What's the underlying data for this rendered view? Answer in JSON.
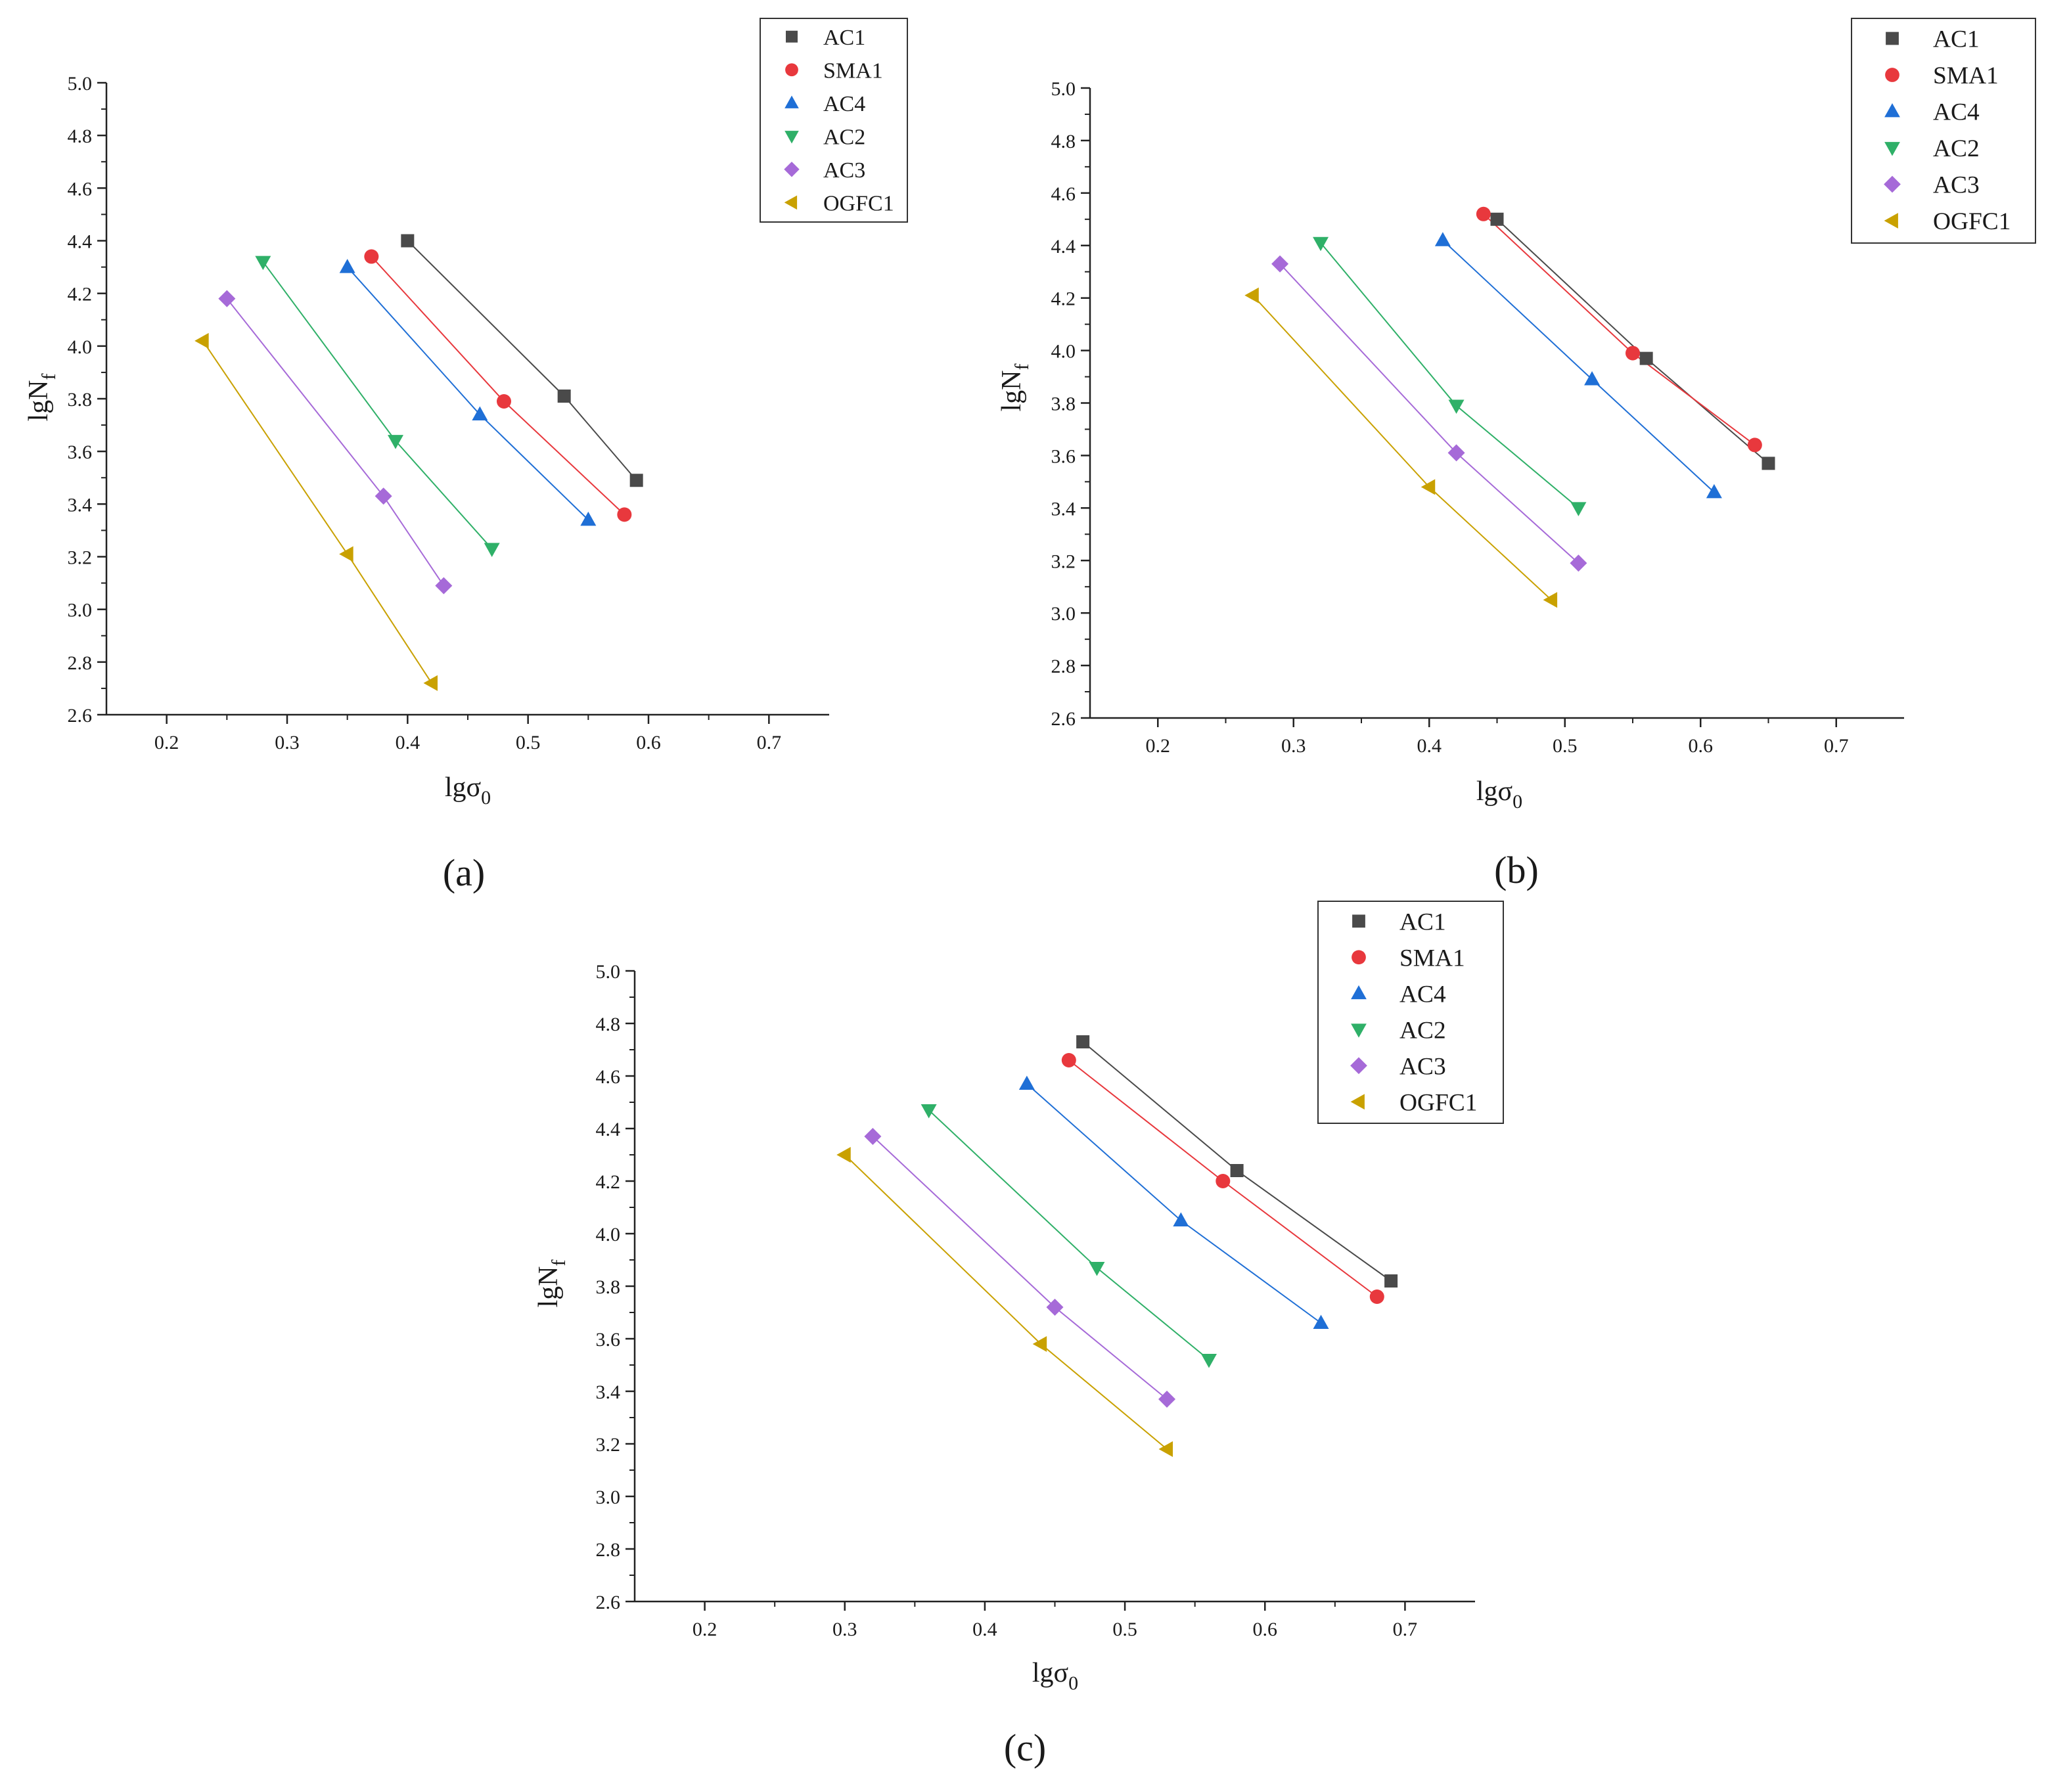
{
  "chart_data": [
    {
      "type": "scatter",
      "panel_label": "(a)",
      "xlabel": "lgσ",
      "xlabel_sub": "0",
      "ylabel": "lgN",
      "ylabel_sub": "f",
      "xlim": [
        0.15,
        0.75
      ],
      "ylim": [
        2.6,
        5.0
      ],
      "xticks": [
        "0.2",
        "0.3",
        "0.4",
        "0.5",
        "0.6",
        "0.7"
      ],
      "yticks": [
        "2.6",
        "2.8",
        "3.0",
        "3.2",
        "3.4",
        "3.6",
        "3.8",
        "4.0",
        "4.2",
        "4.4",
        "4.6",
        "4.8",
        "5.0"
      ],
      "legend_position": "top-right",
      "series": [
        {
          "name": "AC1",
          "marker": "square",
          "color": "#4a4a4a",
          "x": [
            0.4,
            0.53,
            0.59
          ],
          "y": [
            4.4,
            3.81,
            3.49
          ]
        },
        {
          "name": "SMA1",
          "marker": "circle",
          "color": "#e8383d",
          "x": [
            0.37,
            0.48,
            0.58
          ],
          "y": [
            4.34,
            3.79,
            3.36
          ]
        },
        {
          "name": "AC4",
          "marker": "triangle-up",
          "color": "#1f6fd6",
          "x": [
            0.35,
            0.46,
            0.55
          ],
          "y": [
            4.3,
            3.74,
            3.34
          ]
        },
        {
          "name": "AC2",
          "marker": "triangle-down",
          "color": "#2fb068",
          "x": [
            0.28,
            0.39,
            0.47
          ],
          "y": [
            4.32,
            3.64,
            3.23
          ]
        },
        {
          "name": "AC3",
          "marker": "diamond",
          "color": "#a66ad8",
          "x": [
            0.25,
            0.38,
            0.43
          ],
          "y": [
            4.18,
            3.43,
            3.09
          ]
        },
        {
          "name": "OGFC1",
          "marker": "triangle-left",
          "color": "#c9a100",
          "x": [
            0.23,
            0.35,
            0.42
          ],
          "y": [
            4.02,
            3.21,
            2.72
          ]
        }
      ]
    },
    {
      "type": "scatter",
      "panel_label": "(b)",
      "xlabel": "lgσ",
      "xlabel_sub": "0",
      "ylabel": "lgN",
      "ylabel_sub": "f",
      "xlim": [
        0.15,
        0.75
      ],
      "ylim": [
        2.6,
        5.0
      ],
      "xticks": [
        "0.2",
        "0.3",
        "0.4",
        "0.5",
        "0.6",
        "0.7"
      ],
      "yticks": [
        "2.6",
        "2.8",
        "3.0",
        "3.2",
        "3.4",
        "3.6",
        "3.8",
        "4.0",
        "4.2",
        "4.4",
        "4.6",
        "4.8",
        "5.0"
      ],
      "legend_position": "top-right",
      "series": [
        {
          "name": "AC1",
          "marker": "square",
          "color": "#4a4a4a",
          "x": [
            0.45,
            0.56,
            0.65
          ],
          "y": [
            4.5,
            3.97,
            3.57
          ]
        },
        {
          "name": "SMA1",
          "marker": "circle",
          "color": "#e8383d",
          "x": [
            0.44,
            0.55,
            0.64
          ],
          "y": [
            4.52,
            3.99,
            3.64
          ]
        },
        {
          "name": "AC4",
          "marker": "triangle-up",
          "color": "#1f6fd6",
          "x": [
            0.41,
            0.52,
            0.61
          ],
          "y": [
            4.42,
            3.89,
            3.46
          ]
        },
        {
          "name": "AC2",
          "marker": "triangle-down",
          "color": "#2fb068",
          "x": [
            0.32,
            0.42,
            0.51
          ],
          "y": [
            4.41,
            3.79,
            3.4
          ]
        },
        {
          "name": "AC3",
          "marker": "diamond",
          "color": "#a66ad8",
          "x": [
            0.29,
            0.42,
            0.51
          ],
          "y": [
            4.33,
            3.61,
            3.19
          ]
        },
        {
          "name": "OGFC1",
          "marker": "triangle-left",
          "color": "#c9a100",
          "x": [
            0.27,
            0.4,
            0.49
          ],
          "y": [
            4.21,
            3.48,
            3.05
          ]
        }
      ]
    },
    {
      "type": "scatter",
      "panel_label": "(c)",
      "xlabel": "lgσ",
      "xlabel_sub": "0",
      "ylabel": "lgN",
      "ylabel_sub": "f",
      "xlim": [
        0.15,
        0.75
      ],
      "ylim": [
        2.6,
        5.0
      ],
      "xticks": [
        "0.2",
        "0.3",
        "0.4",
        "0.5",
        "0.6",
        "0.7"
      ],
      "yticks": [
        "2.6",
        "2.8",
        "3.0",
        "3.2",
        "3.4",
        "3.6",
        "3.8",
        "4.0",
        "4.2",
        "4.4",
        "4.6",
        "4.8",
        "5.0"
      ],
      "legend_position": "top-right",
      "series": [
        {
          "name": "AC1",
          "marker": "square",
          "color": "#4a4a4a",
          "x": [
            0.47,
            0.58,
            0.69
          ],
          "y": [
            4.73,
            4.24,
            3.82
          ]
        },
        {
          "name": "SMA1",
          "marker": "circle",
          "color": "#e8383d",
          "x": [
            0.46,
            0.57,
            0.68
          ],
          "y": [
            4.66,
            4.2,
            3.76
          ]
        },
        {
          "name": "AC4",
          "marker": "triangle-up",
          "color": "#1f6fd6",
          "x": [
            0.43,
            0.54,
            0.64
          ],
          "y": [
            4.57,
            4.05,
            3.66
          ]
        },
        {
          "name": "AC2",
          "marker": "triangle-down",
          "color": "#2fb068",
          "x": [
            0.36,
            0.48,
            0.56
          ],
          "y": [
            4.47,
            3.87,
            3.52
          ]
        },
        {
          "name": "AC3",
          "marker": "diamond",
          "color": "#a66ad8",
          "x": [
            0.32,
            0.45,
            0.53
          ],
          "y": [
            4.37,
            3.72,
            3.37
          ]
        },
        {
          "name": "OGFC1",
          "marker": "triangle-left",
          "color": "#c9a100",
          "x": [
            0.3,
            0.44,
            0.53
          ],
          "y": [
            4.3,
            3.58,
            3.18
          ]
        }
      ]
    }
  ]
}
